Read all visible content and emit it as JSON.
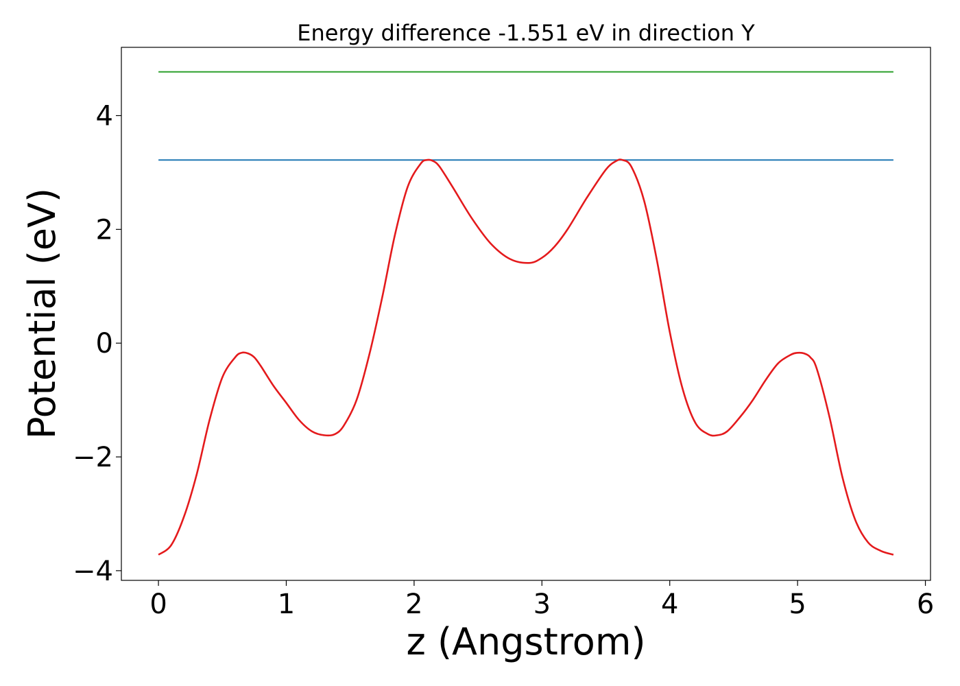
{
  "chart_data": {
    "type": "line",
    "title": "Energy difference -1.551 eV in direction Y",
    "xlabel": "z (Angstrom)",
    "ylabel": "Potential (eV)",
    "xlim": [
      -0.29,
      6.04
    ],
    "ylim": [
      -4.17,
      5.2
    ],
    "xticks": [
      0,
      1,
      2,
      3,
      4,
      5,
      6
    ],
    "xtick_labels": [
      "0",
      "1",
      "2",
      "3",
      "4",
      "5",
      "6"
    ],
    "yticks": [
      -4,
      -2,
      0,
      2,
      4
    ],
    "ytick_labels": [
      "−4",
      "−2",
      "0",
      "2",
      "4"
    ],
    "grid": false,
    "series": [
      {
        "color": "#2ca02c",
        "x": [
          0,
          5.75
        ],
        "y": [
          4.77,
          4.77
        ]
      },
      {
        "color": "#1f77b4",
        "x": [
          0,
          5.75
        ],
        "y": [
          3.22,
          3.22
        ]
      },
      {
        "color": "#e41a1c",
        "x": [
          0,
          0.1,
          0.2,
          0.3,
          0.4,
          0.5,
          0.6,
          0.65,
          0.7,
          0.75,
          0.8,
          0.9,
          1.0,
          1.1,
          1.2,
          1.3,
          1.38,
          1.45,
          1.55,
          1.65,
          1.75,
          1.85,
          1.95,
          2.05,
          2.1,
          2.15,
          2.2,
          2.3,
          2.45,
          2.6,
          2.75,
          2.9,
          3.0,
          3.1,
          3.2,
          3.35,
          3.5,
          3.58,
          3.63,
          3.7,
          3.8,
          3.9,
          4.0,
          4.1,
          4.2,
          4.3,
          4.37,
          4.45,
          4.55,
          4.65,
          4.75,
          4.85,
          4.95,
          5.0,
          5.05,
          5.1,
          5.15,
          5.25,
          5.35,
          5.45,
          5.55,
          5.65,
          5.75
        ],
        "y": [
          -3.72,
          -3.55,
          -3.05,
          -2.3,
          -1.35,
          -0.6,
          -0.25,
          -0.17,
          -0.18,
          -0.25,
          -0.4,
          -0.75,
          -1.05,
          -1.35,
          -1.55,
          -1.62,
          -1.6,
          -1.45,
          -1.0,
          -0.2,
          0.8,
          1.9,
          2.75,
          3.15,
          3.22,
          3.2,
          3.1,
          2.75,
          2.2,
          1.75,
          1.48,
          1.41,
          1.5,
          1.7,
          2.0,
          2.55,
          3.05,
          3.2,
          3.22,
          3.1,
          2.5,
          1.45,
          0.2,
          -0.8,
          -1.4,
          -1.6,
          -1.62,
          -1.55,
          -1.3,
          -1.0,
          -0.65,
          -0.35,
          -0.2,
          -0.17,
          -0.18,
          -0.25,
          -0.45,
          -1.3,
          -2.35,
          -3.1,
          -3.5,
          -3.65,
          -3.72
        ]
      }
    ]
  }
}
